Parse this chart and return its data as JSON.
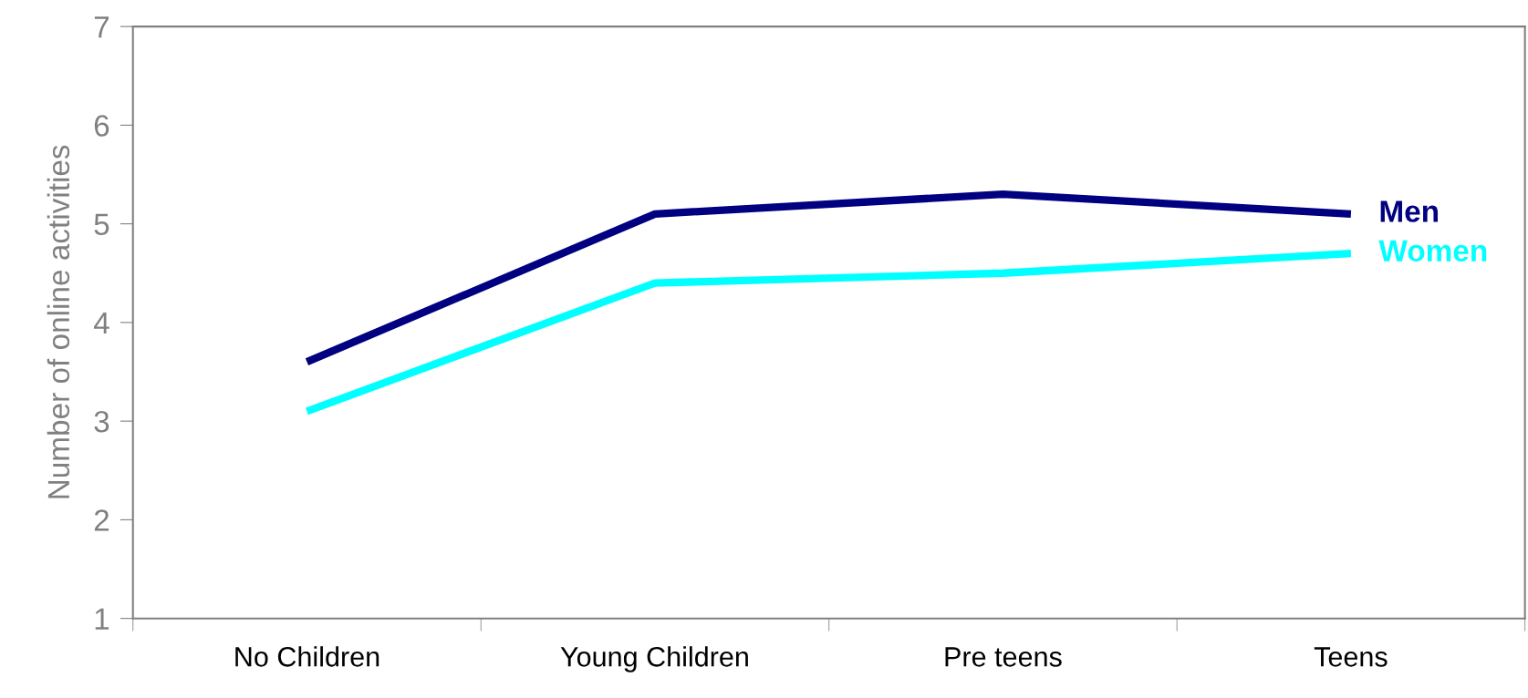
{
  "chart_data": {
    "type": "line",
    "ylabel": "Number of online activities",
    "categories": [
      "No Children",
      "Young Children",
      "Pre teens",
      "Teens"
    ],
    "series": [
      {
        "name": "Men",
        "color": "#000080",
        "values": [
          3.6,
          5.1,
          5.3,
          5.1
        ]
      },
      {
        "name": "Women",
        "color": "#00ffff",
        "values": [
          3.1,
          4.4,
          4.5,
          4.7
        ]
      }
    ],
    "ylim": [
      1,
      7
    ],
    "yticks": [
      1,
      2,
      3,
      4,
      5,
      6,
      7
    ],
    "grid": false,
    "marker": "none",
    "line_style": "solid"
  }
}
